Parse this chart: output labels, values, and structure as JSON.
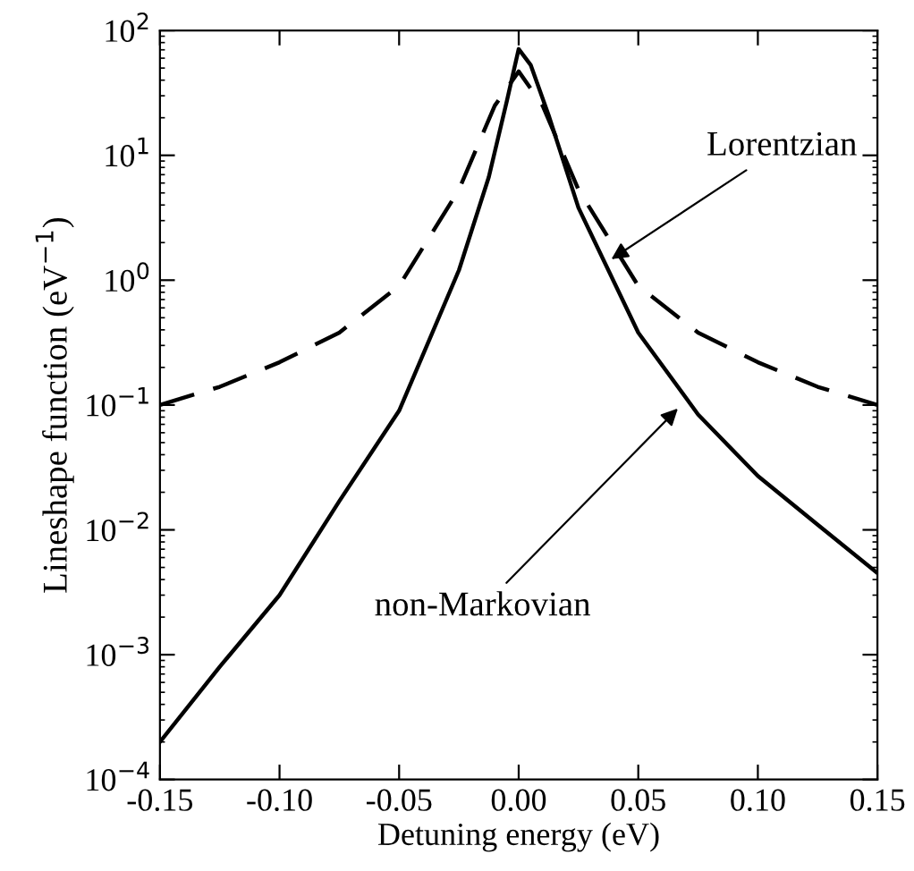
{
  "chart_data": {
    "type": "line",
    "xlabel": "Detuning energy (eV)",
    "ylabel": "Lineshape function (eV$^{−1}$)",
    "log": "y",
    "xlim": [
      -0.15,
      0.15
    ],
    "xticks": [
      {
        "value": -0.15,
        "label": "-0.15"
      },
      {
        "value": -0.1,
        "label": "-0.10"
      },
      {
        "value": -0.05,
        "label": "-0.05"
      },
      {
        "value": 0,
        "label": "0.00"
      },
      {
        "value": 0.05,
        "label": "0.05"
      },
      {
        "value": 0.1,
        "label": "0.10"
      },
      {
        "value": 0.15,
        "label": "0.15"
      }
    ],
    "ylim": [
      0.0001,
      100
    ],
    "yticks": [
      {
        "value": 0.0001,
        "label": "10$^{−4}$"
      },
      {
        "value": 0.001,
        "label": "10$^{−3}$"
      },
      {
        "value": 0.01,
        "label": "10$^{−2}$"
      },
      {
        "value": 0.1,
        "label": "10$^{−1}$"
      },
      {
        "value": 1,
        "label": "10$^{0}$"
      },
      {
        "value": 10,
        "label": "10$^{1}$"
      },
      {
        "value": 100,
        "label": "10$^{2}$"
      }
    ],
    "grid": false,
    "marker": "none",
    "series": [
      {
        "color": "#000000",
        "line_style": "solid",
        "x": [
          -0.15,
          -0.125,
          -0.1,
          -0.075,
          -0.05,
          -0.025,
          -0.0125,
          -0.005,
          0,
          0.005,
          0.0125,
          0.025,
          0.05,
          0.075,
          0.1,
          0.125,
          0.15
        ],
        "values": [
          0.0002,
          0.0008,
          0.003,
          0.017,
          0.09,
          1.2,
          6.7,
          27,
          71,
          53,
          21,
          3.8,
          0.38,
          0.084,
          0.027,
          0.011,
          0.0045
        ]
      },
      {
        "color": "#000000",
        "line_style": "dashed",
        "x": [
          -0.15,
          -0.125,
          -0.1,
          -0.075,
          -0.05,
          -0.025,
          -0.01,
          0,
          0.01,
          0.025,
          0.05,
          0.075,
          0.1,
          0.125,
          0.15
        ],
        "values": [
          0.1,
          0.14,
          0.22,
          0.38,
          0.9,
          5.3,
          25,
          47,
          25,
          5.3,
          0.9,
          0.38,
          0.22,
          0.14,
          0.1
        ]
      }
    ],
    "annotations": [
      {
        "text": "Lorentzian",
        "x": 0.037,
        "y": 1.4
      },
      {
        "text": "non-Markovian",
        "x": 0.068,
        "y": 0.1
      }
    ]
  }
}
